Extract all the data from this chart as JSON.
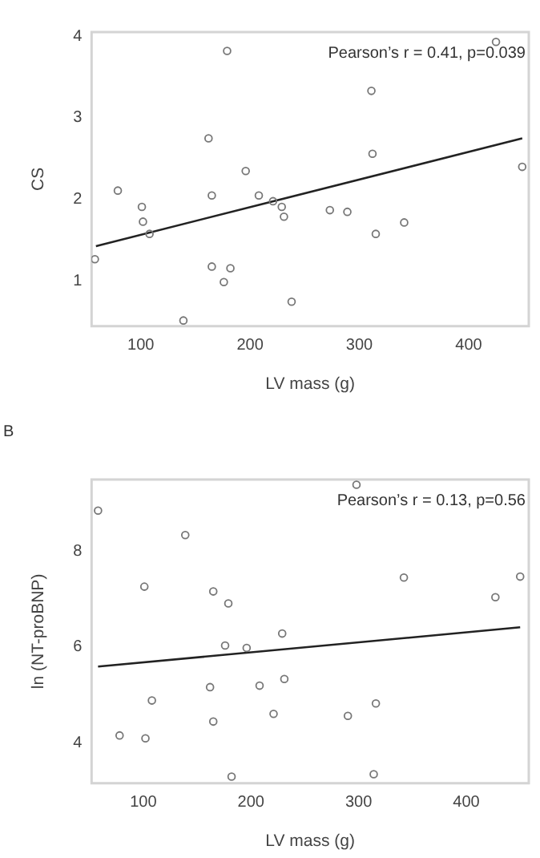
{
  "chart_data": [
    {
      "type": "scatter",
      "xlabel": "LV mass (g)",
      "ylabel": "CS",
      "annotations": [
        "Pearson’s r = 0.41, p=0.039"
      ],
      "xlim": [
        55,
        455
      ],
      "xticks": [
        100,
        200,
        300,
        400
      ],
      "ylim": [
        0.45,
        4.05
      ],
      "yticks": [
        1,
        2,
        3,
        4
      ],
      "grid": false,
      "legend": false,
      "series": [
        {
          "marker": "circle",
          "color": "#777777",
          "x": [
            58,
            79,
            101,
            102,
            108,
            139,
            162,
            165,
            165,
            176,
            179,
            182,
            196,
            208,
            221,
            229,
            231,
            238,
            273,
            289,
            311,
            312,
            315,
            341,
            425,
            449
          ],
          "values": [
            1.27,
            2.11,
            1.91,
            1.73,
            1.58,
            0.52,
            2.75,
            1.18,
            2.05,
            0.99,
            3.82,
            1.16,
            2.35,
            2.05,
            1.98,
            1.91,
            1.79,
            0.75,
            1.87,
            1.85,
            3.33,
            2.56,
            1.58,
            1.72,
            3.93,
            2.4
          ]
        },
        {
          "type": "line",
          "color": "#222222",
          "x": [
            59,
            449
          ],
          "values": [
            1.43,
            2.75
          ]
        }
      ]
    },
    {
      "type": "scatter",
      "title": "B",
      "xlabel": "LV mass (g)",
      "ylabel": "ln (NT-proBNP)",
      "annotations": [
        "Pearson’s r = 0.13, p=0.56"
      ],
      "xlim": [
        52,
        458
      ],
      "xticks": [
        100,
        200,
        300,
        400
      ],
      "ylim": [
        3.15,
        9.5
      ],
      "yticks": [
        4,
        6,
        8
      ],
      "grid": false,
      "legend": false,
      "series": [
        {
          "marker": "circle",
          "color": "#777777",
          "x": [
            58,
            78,
            101,
            102,
            108,
            139,
            162,
            165,
            165,
            176,
            179,
            182,
            196,
            208,
            221,
            229,
            231,
            298,
            290,
            314,
            316,
            342,
            427,
            450
          ],
          "values": [
            8.85,
            4.15,
            7.26,
            4.09,
            4.88,
            8.34,
            5.16,
            7.16,
            4.44,
            6.03,
            6.91,
            3.29,
            5.98,
            5.19,
            4.6,
            6.28,
            5.33,
            9.39,
            4.56,
            3.34,
            4.82,
            7.45,
            7.04,
            7.47
          ]
        },
        {
          "type": "line",
          "color": "#222222",
          "x": [
            58,
            450
          ],
          "values": [
            5.59,
            6.41
          ]
        }
      ]
    }
  ]
}
